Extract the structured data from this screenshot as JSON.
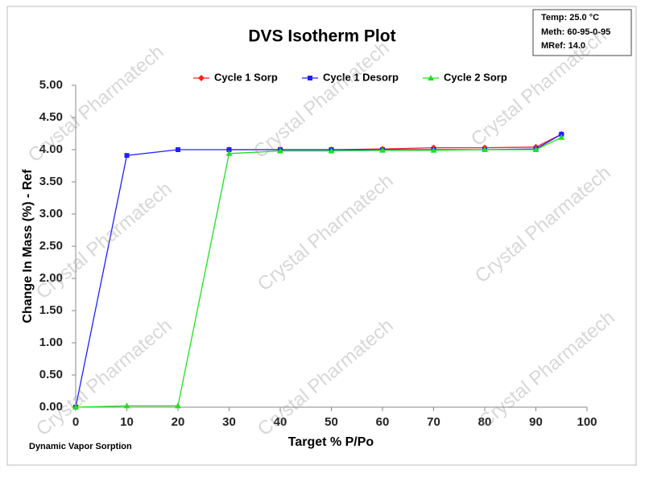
{
  "chart_data": {
    "type": "line",
    "title": "DVS Isotherm Plot",
    "info": [
      "Temp:  25.0 °C",
      "Meth:  60-95-0-95",
      "MRef:  14.0"
    ],
    "footer": "Dynamic Vapor Sorption",
    "watermark": "Crystal Pharmatech",
    "x_label": "Target % P/Po",
    "y_label": "Change In Mass (%) - Ref",
    "xlim": [
      0,
      100
    ],
    "xticks": [
      0,
      10,
      20,
      30,
      40,
      50,
      60,
      70,
      80,
      90,
      100
    ],
    "ylim": [
      0,
      5
    ],
    "yticks": [
      {
        "value": 0,
        "label": "0.00"
      },
      {
        "value": 0.5,
        "label": "0.50"
      },
      {
        "value": 1,
        "label": "1.00"
      },
      {
        "value": 1.5,
        "label": "1.50"
      },
      {
        "value": 2,
        "label": "2.00"
      },
      {
        "value": 2.5,
        "label": "2.50"
      },
      {
        "value": 3,
        "label": "3.00"
      },
      {
        "value": 3.5,
        "label": "3.50"
      },
      {
        "value": 4,
        "label": "4.00"
      },
      {
        "value": 4.5,
        "label": "4.50"
      },
      {
        "value": 5,
        "label": "5.00"
      }
    ],
    "series": [
      {
        "name": "Cycle 1 Sorp",
        "color": "#ff2020",
        "marker": "diamond",
        "x": [
          30,
          40,
          50,
          60,
          70,
          80,
          90,
          95
        ],
        "values": [
          4.0,
          4.0,
          4.0,
          4.01,
          4.03,
          4.03,
          4.04,
          4.24
        ]
      },
      {
        "name": "Cycle 1 Desorp",
        "color": "#2020ff",
        "marker": "square",
        "x": [
          95,
          90,
          80,
          70,
          60,
          50,
          40,
          30,
          20,
          10,
          0
        ],
        "values": [
          4.24,
          4.01,
          4.0,
          4.0,
          4.0,
          4.0,
          4.0,
          4.0,
          4.0,
          3.91,
          0.0
        ]
      },
      {
        "name": "Cycle 2 Sorp",
        "color": "#20e020",
        "marker": "triangle",
        "x": [
          0,
          10,
          20,
          30,
          40,
          50,
          60,
          70,
          80,
          90,
          95
        ],
        "values": [
          0.0,
          0.02,
          0.02,
          3.94,
          3.98,
          3.98,
          3.99,
          3.99,
          4.0,
          4.0,
          4.19
        ]
      }
    ]
  }
}
